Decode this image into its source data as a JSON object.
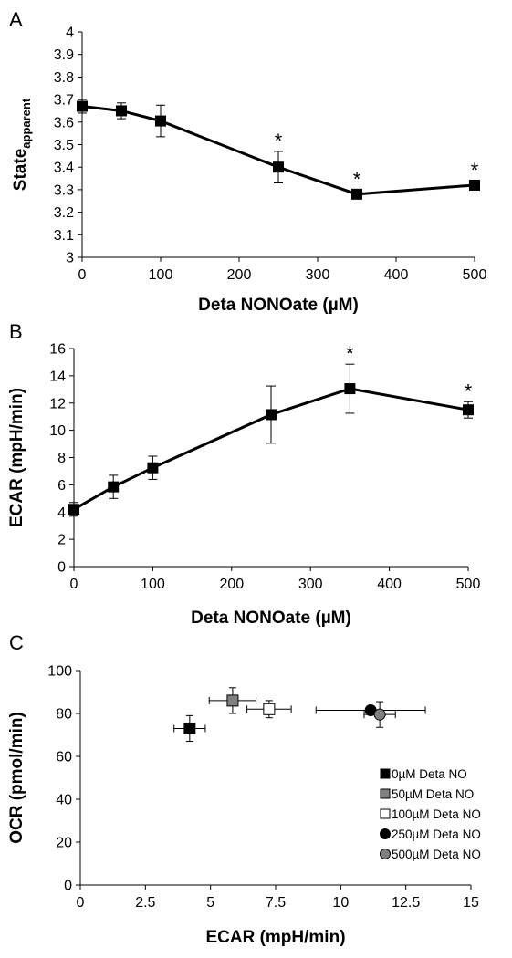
{
  "chart_data": [
    {
      "panel_label": "A",
      "type": "line",
      "xlabel": "Deta NONOate (µM)",
      "ylabel": "State",
      "ylabel_sub": "apparent",
      "xlim": [
        0,
        500
      ],
      "ylim": [
        3,
        4
      ],
      "xticks": [
        "0",
        "100",
        "200",
        "300",
        "400",
        "500"
      ],
      "yticks": [
        "3",
        "3.1",
        "3.2",
        "3.3",
        "3.4",
        "3.5",
        "3.6",
        "3.7",
        "3.8",
        "3.9",
        "4"
      ],
      "x": [
        0,
        50,
        100,
        250,
        350,
        500
      ],
      "y": [
        3.67,
        3.65,
        3.605,
        3.4,
        3.28,
        3.32
      ],
      "yerr": [
        0.03,
        0.035,
        0.07,
        0.07,
        0.02,
        0.02
      ],
      "significant": [
        "",
        "",
        "",
        "*",
        "*",
        "*"
      ]
    },
    {
      "panel_label": "B",
      "type": "line",
      "xlabel": "Deta NONOate (µM)",
      "ylabel": "ECAR (mpH/min)",
      "xlim": [
        0,
        500
      ],
      "ylim": [
        0,
        16
      ],
      "xticks": [
        "0",
        "100",
        "200",
        "300",
        "400",
        "500"
      ],
      "yticks": [
        "0",
        "2",
        "4",
        "6",
        "8",
        "10",
        "12",
        "14",
        "16"
      ],
      "x": [
        0,
        50,
        100,
        250,
        350,
        500
      ],
      "y": [
        4.2,
        5.85,
        7.25,
        11.15,
        13.05,
        11.5
      ],
      "yerr": [
        0.5,
        0.85,
        0.85,
        2.1,
        1.8,
        0.6
      ],
      "significant": [
        "",
        "",
        "",
        "",
        "*",
        "*"
      ]
    },
    {
      "panel_label": "C",
      "type": "scatter",
      "xlabel": "ECAR (mpH/min)",
      "ylabel": "OCR (pmol/min)",
      "xlim": [
        0,
        15
      ],
      "ylim": [
        0,
        100
      ],
      "xticks": [
        "0",
        "2.5",
        "5",
        "7.5",
        "10",
        "12.5",
        "15"
      ],
      "yticks": [
        "0",
        "20",
        "40",
        "60",
        "80",
        "100"
      ],
      "legend_position": "bottom-right",
      "series": [
        {
          "name": "0µM Deta NO",
          "x": 4.2,
          "y": 73,
          "xerr": 0.6,
          "yerr": 6,
          "marker": "square",
          "color": "#000000"
        },
        {
          "name": "50µM Deta NO",
          "x": 5.85,
          "y": 86,
          "xerr": 0.9,
          "yerr": 6,
          "marker": "square",
          "color": "#808080"
        },
        {
          "name": "100µM Deta NO",
          "x": 7.25,
          "y": 82,
          "xerr": 0.85,
          "yerr": 4,
          "marker": "square",
          "color": "#ffffff"
        },
        {
          "name": "250µM Deta NO",
          "x": 11.15,
          "y": 81.5,
          "xerr": 2.1,
          "yerr": 2,
          "marker": "circle",
          "color": "#000000"
        },
        {
          "name": "500µM Deta NO",
          "x": 11.5,
          "y": 79.5,
          "xerr": 0.6,
          "yerr": 6,
          "marker": "circle",
          "color": "#808080"
        }
      ]
    }
  ]
}
